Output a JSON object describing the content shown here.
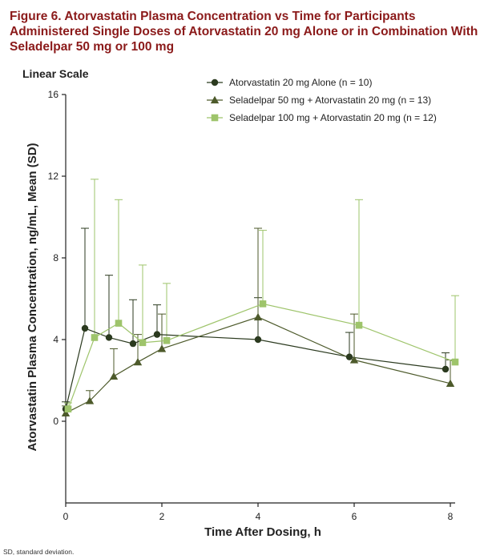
{
  "figure": {
    "title": "Figure 6. Atorvastatin Plasma Concentration vs Time for Participants Administered Single Doses of Atorvastatin 20 mg Alone or in Combination With Seladelpar 50 mg or 100 mg",
    "footnote": "SD, standard deviation."
  },
  "chart_data": {
    "type": "line",
    "title": "Figure 6. Atorvastatin Plasma Concentration vs Time for Participants Administered Single Doses of Atorvastatin 20 mg Alone or in Combination With Seladelpar 50 mg or 100 mg",
    "subtitle": "Linear Scale",
    "xlabel": "Time After Dosing, h",
    "ylabel": "Atorvastatin Plasma Concentration, ng/mL, Mean (SD)",
    "xlim": [
      0,
      8.2
    ],
    "ylim": [
      -4,
      16
    ],
    "xticks": [
      0,
      2,
      4,
      6,
      8
    ],
    "yticks": [
      0,
      4,
      8,
      12,
      16
    ],
    "grid": false,
    "legend_position": "top-right",
    "series": [
      {
        "name": "Atorvastatin 20 mg Alone (n = 10)",
        "marker": "circle",
        "color": "#2b3a1f",
        "x": [
          0,
          0.4,
          0.9,
          1.4,
          1.9,
          4,
          5.9,
          7.9
        ],
        "y": [
          0.6,
          4.55,
          4.1,
          3.8,
          4.25,
          4.0,
          3.15,
          2.55
        ],
        "sd_upper": [
          0.95,
          9.45,
          7.15,
          5.95,
          5.7,
          6.05,
          4.35,
          3.35
        ]
      },
      {
        "name": "Seladelpar 50 mg + Atorvastatin 20 mg (n = 13)",
        "marker": "triangle",
        "color": "#4d5a2b",
        "x": [
          0,
          0.5,
          1.0,
          1.5,
          2.0,
          4.0,
          6.0,
          8.0
        ],
        "y": [
          0.4,
          1.0,
          2.2,
          2.9,
          3.55,
          5.1,
          3.0,
          1.85
        ],
        "sd_upper": [
          0.75,
          1.5,
          3.55,
          4.25,
          5.25,
          9.45,
          5.25,
          3.0
        ]
      },
      {
        "name": "Seladelpar 100 mg + Atorvastatin 20 mg (n = 12)",
        "marker": "square",
        "color": "#9ec46b",
        "x": [
          0.05,
          0.6,
          1.1,
          1.6,
          2.1,
          4.1,
          6.1,
          8.1
        ],
        "y": [
          0.6,
          4.1,
          4.8,
          3.85,
          3.95,
          5.75,
          4.7,
          2.9
        ],
        "sd_upper": [
          0.9,
          11.85,
          10.85,
          7.65,
          6.75,
          9.35,
          10.85,
          6.15
        ]
      }
    ]
  }
}
